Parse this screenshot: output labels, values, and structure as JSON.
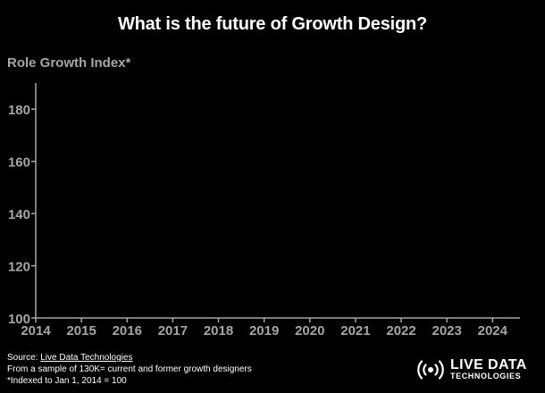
{
  "chart_data": {
    "type": "line",
    "title": "What is the future of Growth Design?",
    "ylabel": "Role Growth Index*",
    "xlabel": "",
    "x_ticks": [
      "2014",
      "2015",
      "2016",
      "2017",
      "2018",
      "2019",
      "2020",
      "2021",
      "2022",
      "2023",
      "2024"
    ],
    "y_ticks": [
      100,
      120,
      140,
      160,
      180
    ],
    "xlim": [
      2014,
      2024.6
    ],
    "ylim": [
      100,
      190
    ],
    "grid": false,
    "series": []
  },
  "footer": {
    "source_prefix": "Source: ",
    "source_link": "Live Data Technologies",
    "sample_note": "From a sample of 130K= current and former growth designers",
    "index_note": "*Indexed to Jan 1, 2014 = 100"
  },
  "logo": {
    "line1": "LIVE DATA",
    "line2": "TECHNOLOGIES",
    "icon": "broadcast-signal-icon"
  },
  "colors": {
    "background": "#000000",
    "axis": "#a6a6a6",
    "title": "#ffffff"
  }
}
